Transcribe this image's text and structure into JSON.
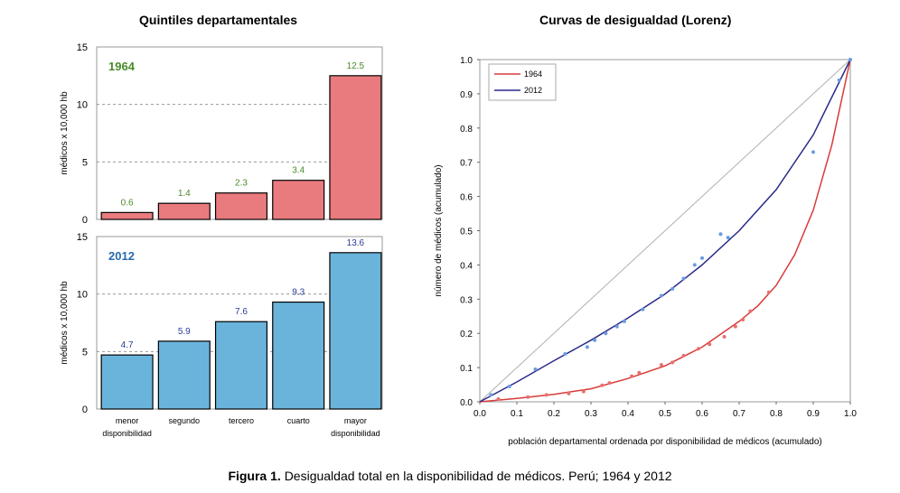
{
  "caption": {
    "label": "Figura 1.",
    "text": "Desigualdad total en la disponibilidad de médicos. Perú; 1964 y 2012"
  },
  "colors": {
    "bar_1964": "#e97b7e",
    "bar_2012": "#6ab4dc",
    "label_1964": "#4a8a2a",
    "label_2012": "#2a6aae",
    "value_2012": "#2a3a9a",
    "lorenz_1964": "#d93a3a",
    "lorenz_2012": "#2a2a8a",
    "equality_line": "#b0b0b0"
  },
  "chart_data": [
    {
      "type": "bar",
      "title": "Quintiles departamentales",
      "panel_label": "1964",
      "categories": [
        "menor disponibilidad",
        "segundo",
        "tercero",
        "cuarto",
        "mayor disponibilidad"
      ],
      "values": [
        0.6,
        1.4,
        2.3,
        3.4,
        12.5
      ],
      "value_labels": [
        "0.6",
        "1.4",
        "2.3",
        "3.4",
        "12.5"
      ],
      "ylabel": "médicos x 10,000 hb",
      "ylim": [
        0,
        15
      ],
      "yticks": [
        0,
        5,
        10,
        15
      ],
      "grid": "dashed"
    },
    {
      "type": "bar",
      "panel_label": "2012",
      "categories": [
        "menor disponibilidad",
        "segundo",
        "tercero",
        "cuarto",
        "mayor disponibilidad"
      ],
      "category_labels": [
        [
          "menor",
          "disponibilidad"
        ],
        [
          "segundo"
        ],
        [
          "tercero"
        ],
        [
          "cuarto"
        ],
        [
          "mayor",
          "disponibilidad"
        ]
      ],
      "values": [
        4.7,
        5.9,
        7.6,
        9.3,
        13.6
      ],
      "value_labels": [
        "4.7",
        "5.9",
        "7.6",
        "9.3",
        "13.6"
      ],
      "ylabel": "médicos x 10,000 hb",
      "ylim": [
        0,
        15
      ],
      "yticks": [
        0,
        5,
        10,
        15
      ],
      "grid": "dashed"
    },
    {
      "type": "line",
      "title": "Curvas de desigualdad (Lorenz)",
      "xlabel": "población departamental ordenada por disponibilidad de médicos (acumulado)",
      "ylabel": "número de médicos (acumulado)",
      "xlim": [
        0,
        1
      ],
      "ylim": [
        0,
        1
      ],
      "ticks": [
        "0.0",
        "0.1",
        "0.2",
        "0.3",
        "0.4",
        "0.5",
        "0.6",
        "0.7",
        "0.8",
        "0.9",
        "1.0"
      ],
      "legend_position": "top-left",
      "series": [
        {
          "name": "1964",
          "curve": [
            [
              0,
              0
            ],
            [
              0.1,
              0.01
            ],
            [
              0.2,
              0.022
            ],
            [
              0.3,
              0.038
            ],
            [
              0.4,
              0.068
            ],
            [
              0.5,
              0.105
            ],
            [
              0.6,
              0.16
            ],
            [
              0.7,
              0.235
            ],
            [
              0.75,
              0.28
            ],
            [
              0.8,
              0.34
            ],
            [
              0.85,
              0.43
            ],
            [
              0.9,
              0.56
            ],
            [
              0.95,
              0.75
            ],
            [
              1,
              1
            ]
          ],
          "points": [
            [
              0.05,
              0.008
            ],
            [
              0.13,
              0.014
            ],
            [
              0.18,
              0.02
            ],
            [
              0.24,
              0.024
            ],
            [
              0.28,
              0.03
            ],
            [
              0.33,
              0.048
            ],
            [
              0.35,
              0.055
            ],
            [
              0.41,
              0.075
            ],
            [
              0.43,
              0.085
            ],
            [
              0.49,
              0.108
            ],
            [
              0.52,
              0.115
            ],
            [
              0.55,
              0.135
            ],
            [
              0.59,
              0.155
            ],
            [
              0.62,
              0.168
            ],
            [
              0.66,
              0.19
            ],
            [
              0.69,
              0.22
            ],
            [
              0.71,
              0.24
            ],
            [
              0.73,
              0.265
            ],
            [
              0.78,
              0.32
            ]
          ]
        },
        {
          "name": "2012",
          "curve": [
            [
              0,
              0
            ],
            [
              0.1,
              0.058
            ],
            [
              0.2,
              0.12
            ],
            [
              0.3,
              0.18
            ],
            [
              0.4,
              0.245
            ],
            [
              0.5,
              0.315
            ],
            [
              0.6,
              0.4
            ],
            [
              0.7,
              0.5
            ],
            [
              0.8,
              0.62
            ],
            [
              0.9,
              0.78
            ],
            [
              1,
              1
            ]
          ],
          "points": [
            [
              0.03,
              0.02
            ],
            [
              0.08,
              0.045
            ],
            [
              0.15,
              0.095
            ],
            [
              0.23,
              0.14
            ],
            [
              0.29,
              0.16
            ],
            [
              0.31,
              0.18
            ],
            [
              0.34,
              0.2
            ],
            [
              0.37,
              0.22
            ],
            [
              0.39,
              0.235
            ],
            [
              0.44,
              0.27
            ],
            [
              0.49,
              0.31
            ],
            [
              0.52,
              0.33
            ],
            [
              0.55,
              0.36
            ],
            [
              0.58,
              0.4
            ],
            [
              0.6,
              0.42
            ],
            [
              0.65,
              0.49
            ],
            [
              0.67,
              0.48
            ],
            [
              0.9,
              0.73
            ],
            [
              0.97,
              0.94
            ],
            [
              1,
              1
            ]
          ]
        }
      ]
    }
  ]
}
